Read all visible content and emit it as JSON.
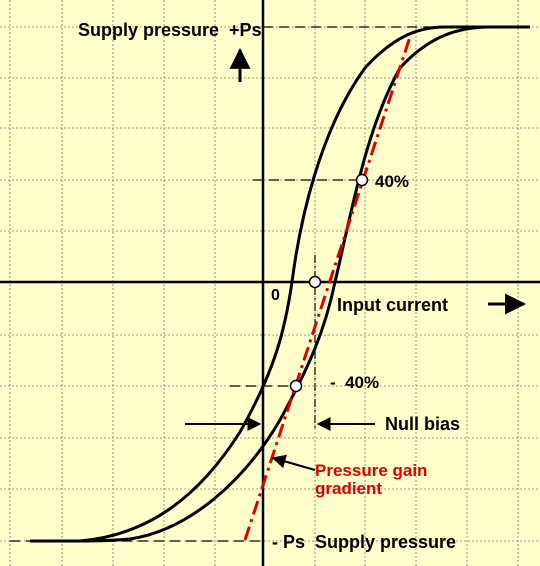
{
  "colors": {
    "background": "#ffffcc",
    "grid": "#777777",
    "curve": "#000000",
    "gradient_line": "#dd0000",
    "gradient_label": "#dd0000"
  },
  "labels": {
    "supply_top": "Supply pressure  +Ps",
    "origin": "0",
    "input_current": "Input current",
    "forty_upper": "40%",
    "forty_lower": "-  40%",
    "null_bias": "Null bias",
    "gain_line1": "Pressure gain",
    "gain_line2": "gradient",
    "supply_bottom": "- Ps  Supply pressure"
  }
}
